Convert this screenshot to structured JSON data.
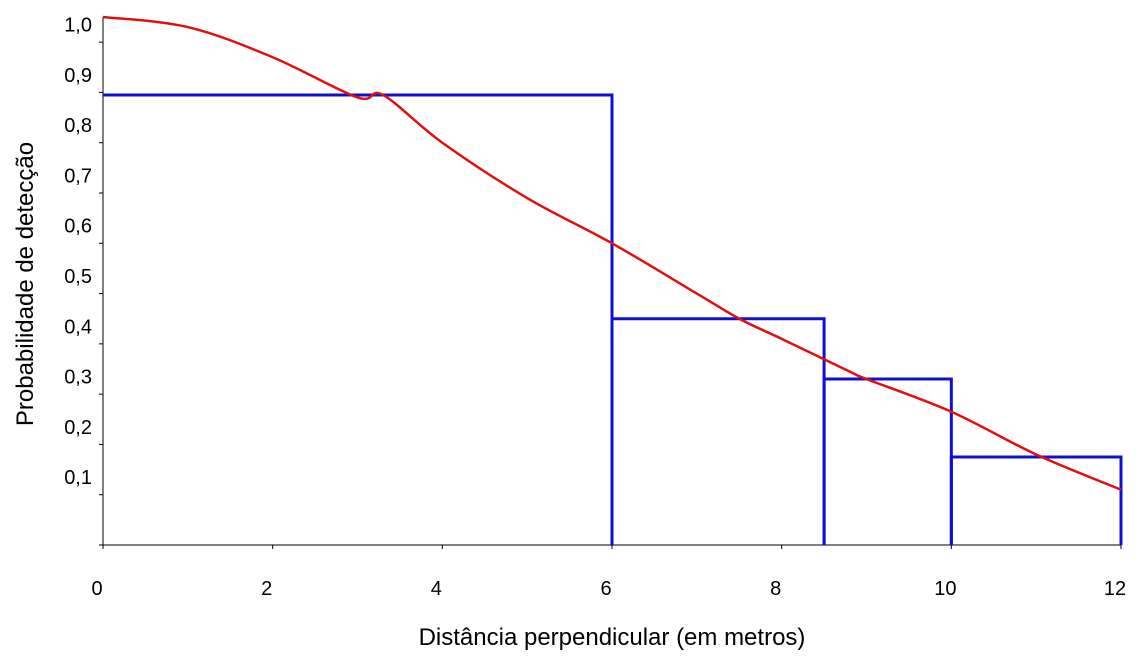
{
  "chart_data": {
    "type": "line",
    "xlabel": "Distância perpendicular (em metros)",
    "ylabel": "Probabilidade de detecção",
    "xlim": [
      0,
      12
    ],
    "ylim": [
      0,
      1.05
    ],
    "x_ticks": [
      "0",
      "2",
      "4",
      "6",
      "8",
      "10",
      "12"
    ],
    "y_ticks": [
      "0,1",
      "0,2",
      "0,3",
      "0,4",
      "0,5",
      "0,6",
      "0,7",
      "0,8",
      "0,9",
      "1,0"
    ],
    "grid": false,
    "legend": "none",
    "series": [
      {
        "kind": "step-histogram",
        "color": "#1010d0",
        "bins": [
          {
            "x0": 0,
            "x1": 6,
            "y": 0.895
          },
          {
            "x0": 6,
            "x1": 8.5,
            "y": 0.45
          },
          {
            "x0": 8.5,
            "x1": 10,
            "y": 0.33
          },
          {
            "x0": 10,
            "x1": 12,
            "y": 0.175
          }
        ]
      },
      {
        "kind": "curve",
        "color": "#e01010",
        "points": [
          [
            0,
            1.05
          ],
          [
            1,
            1.03
          ],
          [
            2,
            0.97
          ],
          [
            3,
            0.89
          ],
          [
            3.3,
            0.895
          ],
          [
            4,
            0.8
          ],
          [
            5,
            0.69
          ],
          [
            6,
            0.6
          ],
          [
            7,
            0.5
          ],
          [
            7.5,
            0.45
          ],
          [
            8,
            0.41
          ],
          [
            8.8,
            0.345
          ],
          [
            9,
            0.33
          ],
          [
            10,
            0.265
          ],
          [
            11,
            0.18
          ],
          [
            12,
            0.11
          ]
        ]
      }
    ]
  }
}
